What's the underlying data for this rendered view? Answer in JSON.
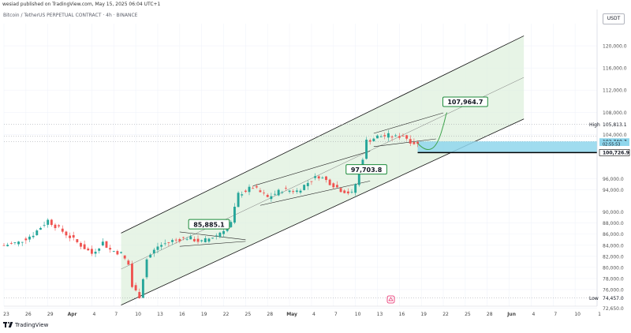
{
  "header": {
    "published_line": "wesiad published on TradingView.com, May 15, 2025 06:04 UTC+1",
    "symbol_line": "Bitcoin / TetherUS PERPETUAL CONTRACT · 4h · BINANCE",
    "currency": "USDT"
  },
  "logo": {
    "text": "TradingView"
  },
  "colors": {
    "up": "#26a69a",
    "down": "#ef5350",
    "channel_fill": "#dff0dd",
    "channel_line": "#111111",
    "zone_fill": "#8fd6ec",
    "callout_border": "#1c8a3a",
    "projection": "#3fa34d"
  },
  "chart_data": {
    "type": "candlestick",
    "ylim": [
      73000,
      124000
    ],
    "y_ticks": [
      "120,000.0",
      "116,000.0",
      "112,000.0",
      "108,000.0",
      "104,000.0",
      "96,000.0",
      "94,000.0",
      "90,000.0",
      "88,000.0",
      "86,000.0",
      "84,000.0",
      "82,000.0",
      "80,000.0",
      "78,000.0",
      "76,000.0",
      "72,650.0"
    ],
    "y_tick_values": [
      120000,
      116000,
      112000,
      108000,
      104000,
      96000,
      94000,
      90000,
      88000,
      86000,
      84000,
      82000,
      80000,
      78000,
      76000,
      72650
    ],
    "x_ticks": [
      "23",
      "26",
      "29",
      "Apr",
      "4",
      "7",
      "10",
      "13",
      "16",
      "19",
      "22",
      "25",
      "28",
      "May",
      "4",
      "7",
      "10",
      "13",
      "16",
      "19",
      "22",
      "25",
      "28",
      "Jun",
      "4",
      "7",
      "10",
      "1"
    ],
    "x_tick_index": [
      0,
      6,
      12,
      18,
      24,
      30,
      36,
      42,
      48,
      54,
      60,
      66,
      72,
      78,
      84,
      90,
      96,
      102,
      108,
      114,
      120,
      126,
      132,
      138,
      144,
      150,
      156,
      162
    ],
    "price_labels": [
      {
        "label": "High",
        "text": "105,813.1",
        "value": 105813.1,
        "style": "plain"
      },
      {
        "label": "",
        "text": "102,740.7",
        "value": 102740.7,
        "style": "zone"
      },
      {
        "label": "",
        "text": "02:55:53",
        "value": 102350,
        "style": "zone-small"
      },
      {
        "label": "",
        "text": "100,726.9",
        "value": 100726.9,
        "style": "dark"
      },
      {
        "label": "Low",
        "text": "74,457.0",
        "value": 74457.0,
        "style": "plain"
      }
    ],
    "annotations": [
      {
        "text": "85,885.1",
        "value": 85885.1
      },
      {
        "text": "97,703.8",
        "value": 97703.8
      },
      {
        "text": "107,964.7",
        "value": 107964.7
      }
    ],
    "anchors": [
      [
        0,
        84000
      ],
      [
        4,
        84500
      ],
      [
        8,
        86000
      ],
      [
        12,
        88500
      ],
      [
        16,
        86500
      ],
      [
        20,
        84500
      ],
      [
        24,
        82500
      ],
      [
        27,
        84500
      ],
      [
        29,
        83200
      ],
      [
        32,
        82500
      ],
      [
        34,
        80500
      ],
      [
        35,
        76500
      ],
      [
        37,
        74800
      ],
      [
        39,
        81500
      ],
      [
        42,
        83800
      ],
      [
        46,
        84800
      ],
      [
        50,
        85400
      ],
      [
        54,
        84600
      ],
      [
        58,
        85800
      ],
      [
        62,
        88000
      ],
      [
        64,
        93200
      ],
      [
        68,
        94500
      ],
      [
        72,
        92600
      ],
      [
        76,
        94000
      ],
      [
        80,
        93800
      ],
      [
        84,
        95800
      ],
      [
        86,
        96500
      ],
      [
        89,
        95300
      ],
      [
        92,
        94000
      ],
      [
        95,
        93300
      ],
      [
        97,
        96800
      ],
      [
        99,
        102800
      ],
      [
        102,
        103600
      ],
      [
        105,
        103800
      ],
      [
        107,
        103500
      ],
      [
        109,
        103900
      ],
      [
        111,
        102800
      ],
      [
        113,
        102200
      ]
    ]
  }
}
